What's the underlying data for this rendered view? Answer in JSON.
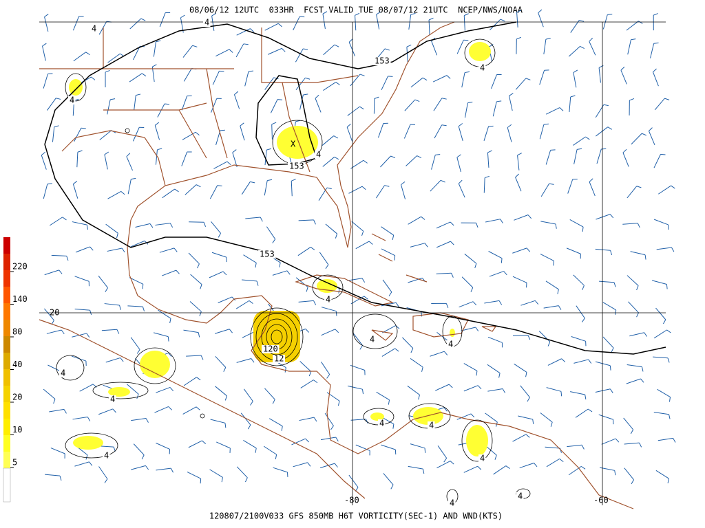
{
  "header": {
    "title": "08/06/12 12UTC  033HR  FCST VALID TUE 08/07/12 21UTC  NCEP/NWS/NOAA"
  },
  "footer": {
    "title": "120807/2100V033 GFS 850MB H6T VORTICITY(SEC-1) AND WND(KTS)"
  },
  "colorbar": {
    "labels": [
      220,
      140,
      80,
      40,
      20,
      10,
      5
    ]
  },
  "grid_labels": [
    20,
    -80,
    -60
  ],
  "contour_labels": [
    "153",
    "153",
    "153",
    "4",
    "4",
    "4",
    "4",
    "4",
    "4",
    "4",
    "4",
    "4",
    "4",
    "4",
    "4",
    "4",
    "4",
    "4",
    "4",
    "12",
    "120"
  ]
}
